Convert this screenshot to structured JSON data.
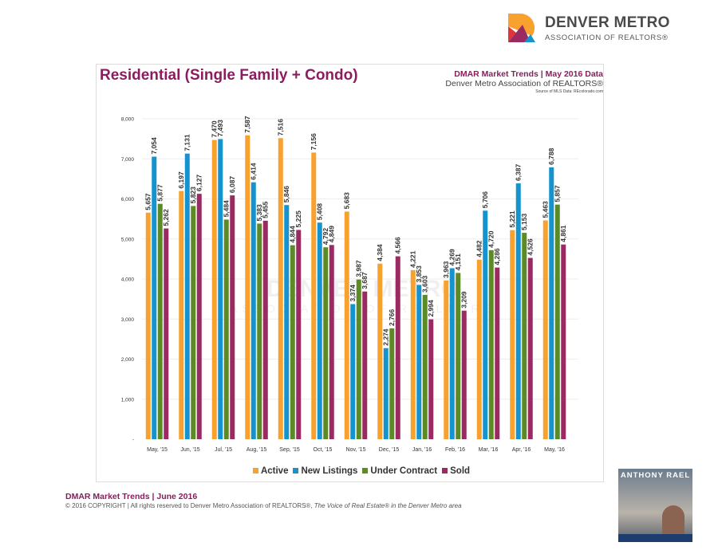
{
  "logo": {
    "line1": "DENVER METRO",
    "line2": "ASSOCIATION OF REALTORS®"
  },
  "header": {
    "title": "Residential (Single Family + Condo)",
    "right_line1": "DMAR Market Trends | May 2016 Data",
    "right_line2": "Denver Metro Association of REALTORS®",
    "right_line3": "Source of MLS Data: REcolorado.com"
  },
  "watermark": {
    "line1": "DENVER METRO",
    "line2": "ASSOCIATION OF REALTORS"
  },
  "footer": {
    "line1": "DMAR Market Trends | June 2016",
    "line2_plain": "© 2016 COPYRIGHT | All rights reserved to Denver Metro Association of REALTORS®, ",
    "line2_italic": "The Voice of Real Estate® in the Denver Metro area"
  },
  "ad": {
    "name": "ANTHONY RAEL"
  },
  "chart_data": {
    "type": "bar",
    "title": "Residential (Single Family + Condo)",
    "xlabel": "",
    "ylabel": "",
    "ylim": [
      0,
      8000
    ],
    "yticks": [
      0,
      1000,
      2000,
      3000,
      4000,
      5000,
      6000,
      7000,
      8000
    ],
    "ytick_labels": [
      "-",
      "1,000",
      "2,000",
      "3,000",
      "4,000",
      "5,000",
      "6,000",
      "7,000",
      "8,000"
    ],
    "grid": true,
    "legend_position": "bottom",
    "categories": [
      "May, '15",
      "Jun, '15",
      "Jul, '15",
      "Aug, '15",
      "Sep, '15",
      "Oct, '15",
      "Nov, '15",
      "Dec, '15",
      "Jan, '16",
      "Feb, '16",
      "Mar, '16",
      "Apr, '16",
      "May, '16"
    ],
    "series": [
      {
        "name": "Active",
        "color": "#f9a12e",
        "values": [
          5657,
          6197,
          7470,
          7587,
          7516,
          7156,
          5683,
          4384,
          4221,
          3963,
          4482,
          5221,
          5463
        ]
      },
      {
        "name": "New Listings",
        "color": "#1493cf",
        "values": [
          7054,
          7131,
          7493,
          6414,
          5846,
          5408,
          3374,
          2274,
          3853,
          4269,
          5706,
          6387,
          6788
        ]
      },
      {
        "name": "Under Contract",
        "color": "#5b8a26",
        "values": [
          5877,
          5823,
          5484,
          5383,
          4844,
          4792,
          3987,
          2766,
          3603,
          4151,
          4720,
          5153,
          5857
        ]
      },
      {
        "name": "Sold",
        "color": "#9c2a62",
        "values": [
          5262,
          6127,
          6087,
          5455,
          5225,
          4849,
          3687,
          4566,
          2994,
          3209,
          4286,
          4526,
          4861
        ]
      }
    ]
  }
}
